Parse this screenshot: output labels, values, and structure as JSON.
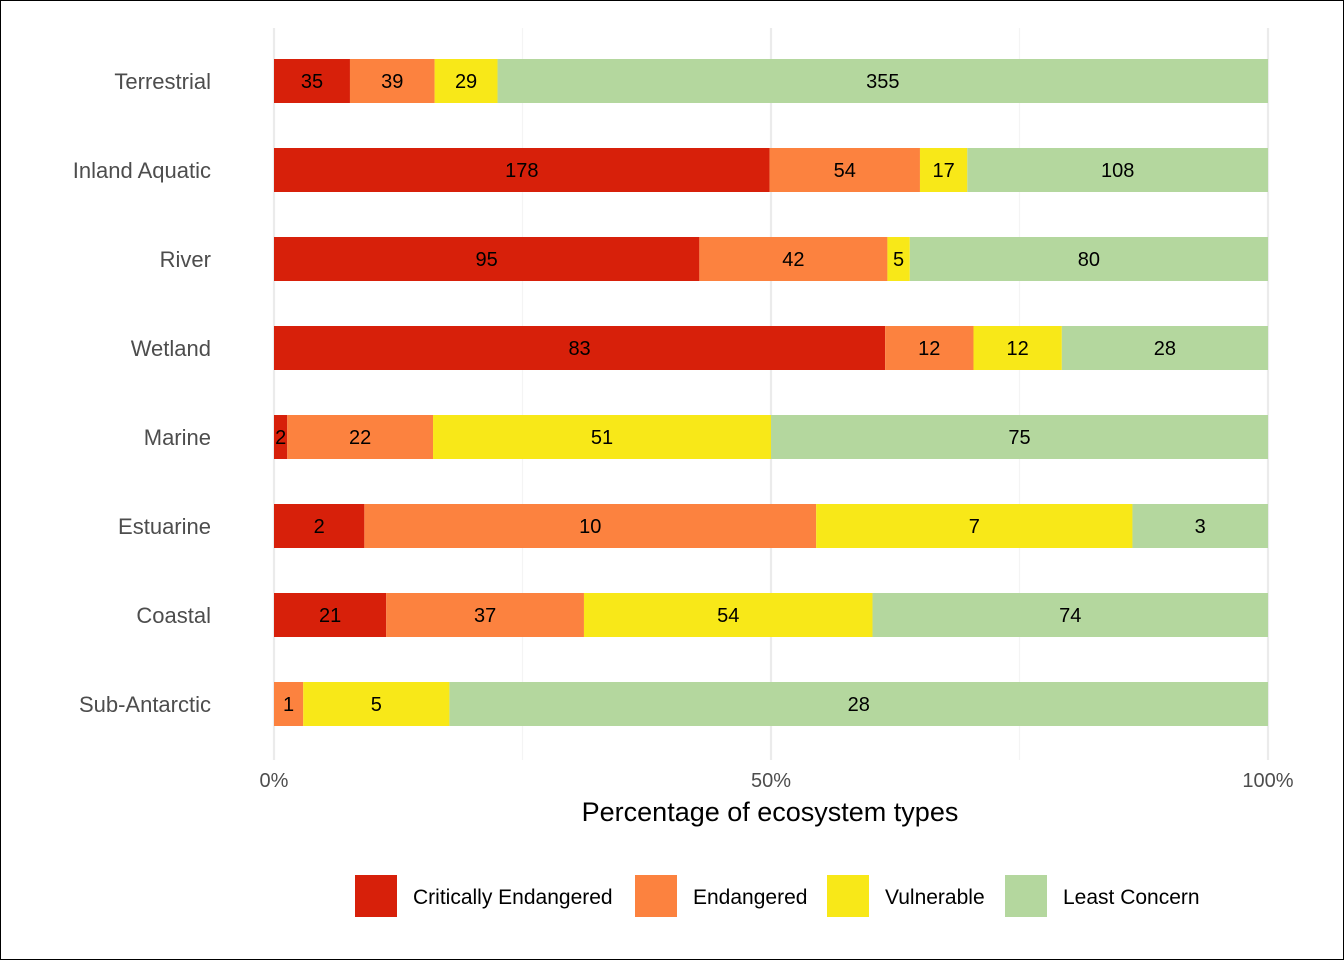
{
  "chart_data": {
    "type": "bar",
    "orientation": "horizontal",
    "stacked": true,
    "normalized": true,
    "categories": [
      "Terrestrial",
      "Inland Aquatic",
      "River",
      "Wetland",
      "Marine",
      "Estuarine",
      "Coastal",
      "Sub-Antarctic"
    ],
    "series": [
      {
        "name": "Critically Endangered",
        "color": "#d7200a",
        "values": [
          35,
          178,
          95,
          83,
          2,
          2,
          21,
          0
        ]
      },
      {
        "name": "Endangered",
        "color": "#fc823f",
        "values": [
          39,
          54,
          42,
          12,
          22,
          10,
          37,
          1
        ]
      },
      {
        "name": "Vulnerable",
        "color": "#f8e818",
        "values": [
          29,
          17,
          5,
          12,
          51,
          7,
          54,
          5
        ]
      },
      {
        "name": "Least Concern",
        "color": "#b4d79e",
        "values": [
          355,
          108,
          80,
          28,
          75,
          3,
          74,
          28
        ]
      }
    ],
    "xlabel": "Percentage of ecosystem types",
    "ylabel": "",
    "xlim": [
      0,
      100
    ],
    "x_ticks": [
      "0%",
      "50%",
      "100%"
    ],
    "grid": true,
    "legend_position": "bottom"
  }
}
